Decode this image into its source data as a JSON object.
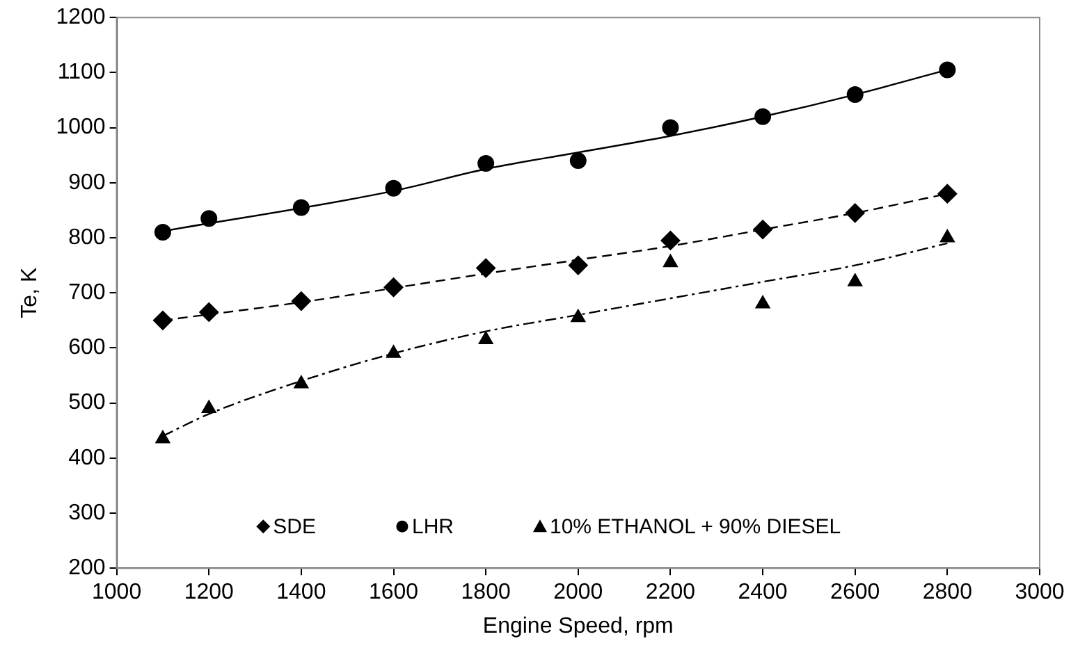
{
  "chart_data": {
    "type": "scatter",
    "xlabel": "Engine Speed, rpm",
    "ylabel": "Te, K",
    "x": [
      1100,
      1200,
      1400,
      1600,
      1800,
      2000,
      2200,
      2400,
      2600,
      2800
    ],
    "series": [
      {
        "name": "SDE",
        "color": "#000000",
        "marker": "diamond",
        "values": [
          650,
          665,
          685,
          710,
          745,
          750,
          795,
          815,
          845,
          880
        ]
      },
      {
        "name": "LHR",
        "color": "#000000",
        "marker": "circle",
        "values": [
          810,
          835,
          855,
          890,
          935,
          940,
          1000,
          1020,
          1060,
          1105
        ]
      },
      {
        "name": "10% ETHANOL + 90% DIESEL",
        "color": "#000000",
        "marker": "triangle",
        "values": [
          435,
          490,
          535,
          590,
          615,
          655,
          755,
          680,
          720,
          800
        ]
      },
      {
        "type": "line",
        "color": "#000000",
        "line_style": "dashed",
        "marker": "none",
        "x": [
          1100,
          1400,
          1800,
          2000,
          2200,
          2400,
          2600,
          2800
        ],
        "values": [
          650,
          683,
          735,
          760,
          785,
          815,
          845,
          880
        ]
      },
      {
        "type": "line",
        "color": "#000000",
        "line_style": "solid",
        "marker": "none",
        "x": [
          1100,
          1600,
          1800,
          2000,
          2200,
          2400,
          2600,
          2800
        ],
        "values": [
          812,
          885,
          925,
          955,
          985,
          1020,
          1060,
          1105
        ]
      },
      {
        "type": "line",
        "color": "#000000",
        "line_style": "dashdot",
        "marker": "none",
        "x": [
          1100,
          1200,
          1400,
          1600,
          1800,
          2000,
          2200,
          2400,
          2600,
          2800
        ],
        "values": [
          440,
          480,
          540,
          590,
          630,
          660,
          690,
          720,
          750,
          790
        ]
      }
    ],
    "xlim": [
      1000,
      3000
    ],
    "xticks": [
      1000,
      1200,
      1400,
      1600,
      1800,
      2000,
      2200,
      2400,
      2600,
      2800,
      3000
    ],
    "ylim": [
      200,
      1200
    ],
    "yticks": [
      200,
      300,
      400,
      500,
      600,
      700,
      800,
      900,
      1000,
      1100,
      1200
    ],
    "grid": false,
    "legend": "bottom"
  }
}
